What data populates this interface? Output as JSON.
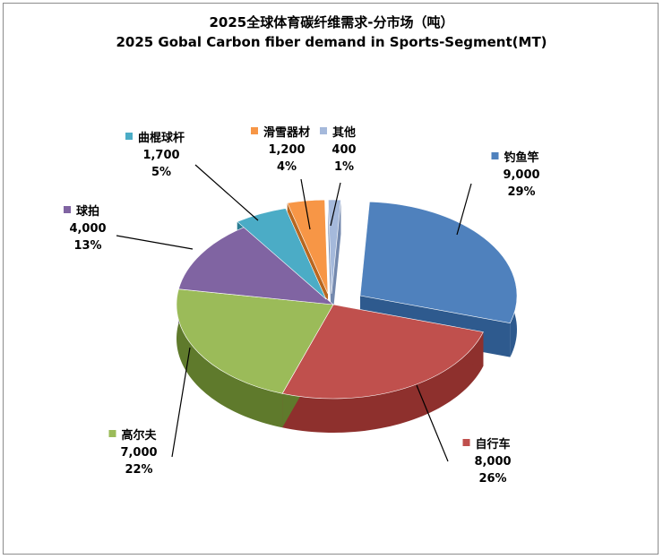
{
  "chart_data": {
    "type": "pie",
    "title": "2025全球体育碳纤维需求-分市场（吨）",
    "subtitle": "2025 Gobal Carbon fiber demand in Sports-Segment(MT)",
    "slices": [
      {
        "name": "钓鱼竿",
        "value": 9000,
        "value_label": "9,000",
        "percent_label": "29%",
        "color": "#4F81BD",
        "side": "#2E5A8E",
        "explode": 0.12,
        "label_side": "right"
      },
      {
        "name": "自行车",
        "value": 8000,
        "value_label": "8,000",
        "percent_label": "26%",
        "color": "#C0504D",
        "side": "#8E302D",
        "explode": 0.0,
        "label_side": "right"
      },
      {
        "name": "高尔夫",
        "value": 7000,
        "value_label": "7,000",
        "percent_label": "22%",
        "color": "#9BBB59",
        "side": "#5F7A2C",
        "explode": 0.0,
        "label_side": "left"
      },
      {
        "name": "球拍",
        "value": 4000,
        "value_label": "4,000",
        "percent_label": "13%",
        "color": "#8064A2",
        "side": "#55406F",
        "explode": 0.0,
        "label_side": "left"
      },
      {
        "name": "曲棍球杆",
        "value": 1700,
        "value_label": "1,700",
        "percent_label": "5%",
        "color": "#4BACC6",
        "side": "#2A7C92",
        "explode": 0.0,
        "label_side": "left"
      },
      {
        "name": "滑雪器材",
        "value": 1200,
        "value_label": "1,200",
        "percent_label": "4%",
        "color": "#F79646",
        "side": "#B8661F",
        "explode": 0.0,
        "label_side": "top"
      },
      {
        "name": "其他",
        "value": 400,
        "value_label": "400",
        "percent_label": "1%",
        "color": "#A5B9DB",
        "side": "#7489AE",
        "explode": 0.0,
        "label_side": "top"
      }
    ],
    "legend": "none",
    "labels": "category, value, percent"
  }
}
